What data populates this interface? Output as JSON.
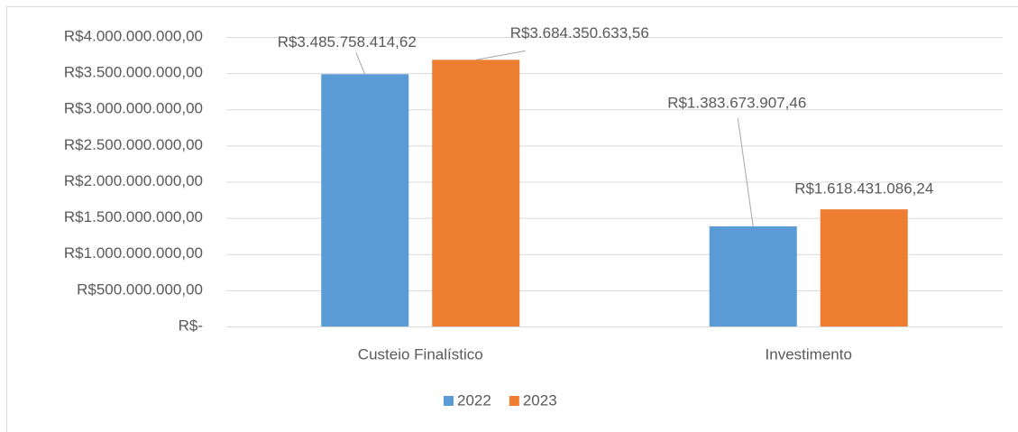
{
  "chart_data": {
    "type": "bar",
    "categories": [
      "Custeio Finalístico",
      "Investimento"
    ],
    "series": [
      {
        "name": "2022",
        "color": "#5b9bd5",
        "values": [
          3485758414.62,
          1383673907.46
        ],
        "value_labels": [
          "R$3.485.758.414,62",
          "R$1.383.673.907,46"
        ]
      },
      {
        "name": "2023",
        "color": "#ed7d31",
        "values": [
          3684350633.56,
          1618431086.24
        ],
        "value_labels": [
          "R$3.684.350.633,56",
          "R$1.618.431.086,24"
        ]
      }
    ],
    "ylim": [
      0,
      4000000000
    ],
    "yticks": [
      {
        "value": 0,
        "label": "R$-"
      },
      {
        "value": 500000000,
        "label": "R$500.000.000,00"
      },
      {
        "value": 1000000000,
        "label": "R$1.000.000.000,00"
      },
      {
        "value": 1500000000,
        "label": "R$1.500.000.000,00"
      },
      {
        "value": 2000000000,
        "label": "R$2.000.000.000,00"
      },
      {
        "value": 2500000000,
        "label": "R$2.500.000.000,00"
      },
      {
        "value": 3000000000,
        "label": "R$3.000.000.000,00"
      },
      {
        "value": 3500000000,
        "label": "R$3.500.000.000,00"
      },
      {
        "value": 4000000000,
        "label": "R$4.000.000.000,00"
      }
    ],
    "grid": true,
    "legend": "bottom"
  }
}
